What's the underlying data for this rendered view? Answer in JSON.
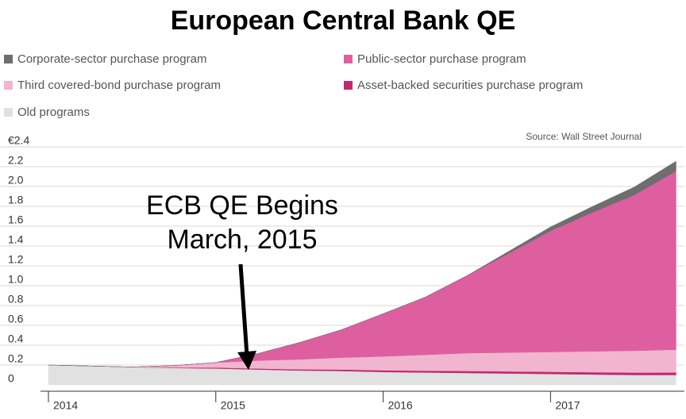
{
  "chart_data": {
    "type": "area",
    "stacked": true,
    "title": "European Central Bank QE",
    "source": "Source: Wall Street Journal",
    "annotations": [
      "ECB QE Begins",
      "March, 2015"
    ],
    "x": [
      2014.0,
      2014.25,
      2014.5,
      2014.75,
      2015.0,
      2015.25,
      2015.5,
      2015.75,
      2016.0,
      2016.25,
      2016.5,
      2016.75,
      2017.0,
      2017.25,
      2017.5,
      2017.75
    ],
    "xlim": [
      2014,
      2017.8
    ],
    "xticks": [
      2014,
      2015,
      2016,
      2017
    ],
    "ylim": [
      0,
      2.4
    ],
    "yticks": [
      0,
      0.2,
      0.4,
      0.6,
      0.8,
      {
        "value": 1,
        "label": "1.0"
      },
      1.2,
      1.4,
      1.6,
      1.8,
      {
        "value": 2,
        "label": "2.0"
      },
      2.2,
      {
        "value": 2.4,
        "label": "€2.4"
      }
    ],
    "grid": true,
    "series": [
      {
        "name": "Old programs",
        "color": "#e1e1e1",
        "values": [
          0.2,
          0.19,
          0.18,
          0.17,
          0.165,
          0.155,
          0.145,
          0.14,
          0.13,
          0.125,
          0.12,
          0.115,
          0.11,
          0.105,
          0.1,
          0.1
        ]
      },
      {
        "name": "Asset-backed securities purchase program",
        "color": "#c2286f",
        "values": [
          0,
          0,
          0,
          0.005,
          0.01,
          0.01,
          0.012,
          0.015,
          0.017,
          0.018,
          0.02,
          0.021,
          0.022,
          0.023,
          0.024,
          0.025
        ]
      },
      {
        "name": "Third covered-bond purchase program",
        "color": "#f1b5cf",
        "values": [
          0,
          0,
          0,
          0.02,
          0.05,
          0.08,
          0.1,
          0.12,
          0.14,
          0.16,
          0.18,
          0.19,
          0.2,
          0.21,
          0.22,
          0.23
        ]
      },
      {
        "name": "Public-sector purchase program",
        "color": "#dd5fa0",
        "values": [
          0,
          0,
          0,
          0,
          0,
          0.07,
          0.17,
          0.28,
          0.43,
          0.58,
          0.78,
          1.0,
          1.22,
          1.4,
          1.57,
          1.8
        ]
      },
      {
        "name": "Corporate-sector purchase program",
        "color": "#6e6e6e",
        "values": [
          0,
          0,
          0,
          0,
          0,
          0,
          0,
          0,
          0,
          0,
          0,
          0.02,
          0.04,
          0.06,
          0.08,
          0.1
        ]
      }
    ]
  }
}
